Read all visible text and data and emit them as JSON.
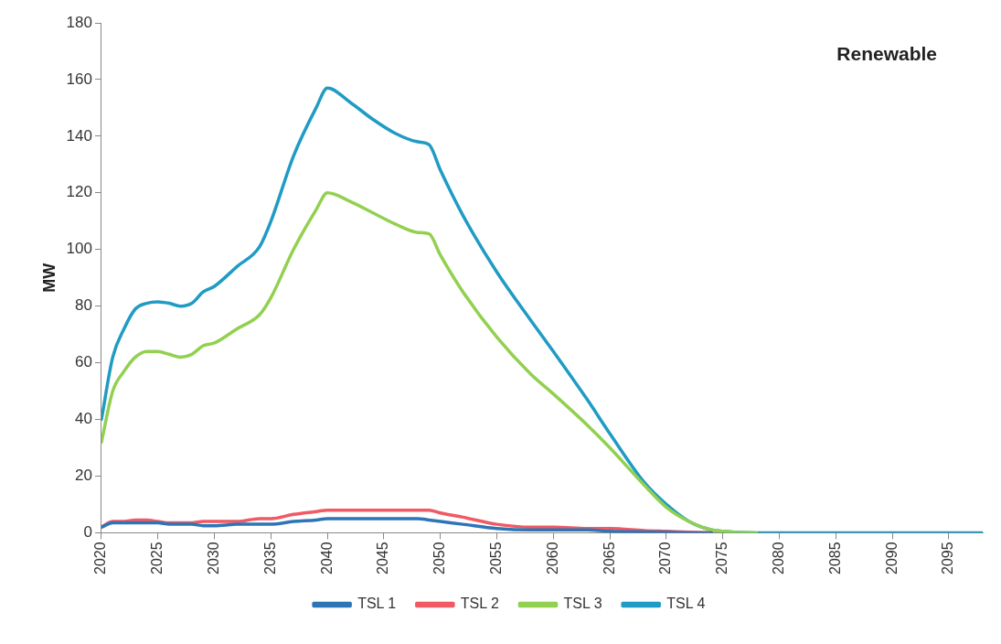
{
  "chart_data": {
    "type": "line",
    "ylabel": "MW",
    "annotations": [
      "Renewable"
    ],
    "x": [
      2020,
      2021,
      2022,
      2023,
      2024,
      2025,
      2026,
      2027,
      2028,
      2029,
      2030,
      2032,
      2034,
      2035,
      2037,
      2039,
      2040,
      2042,
      2044,
      2046,
      2048,
      2049,
      2050,
      2052,
      2055,
      2058,
      2060,
      2063,
      2065,
      2068,
      2070,
      2072,
      2074,
      2075,
      2076,
      2078,
      2080,
      2085,
      2090,
      2095,
      2098
    ],
    "series": [
      {
        "name": "TSL 1",
        "color": "#2e75b6",
        "values": [
          2,
          3.5,
          3.5,
          3.5,
          3.5,
          3.5,
          3,
          3,
          3,
          2.5,
          2.5,
          3,
          3,
          3,
          4,
          4.5,
          5,
          5,
          5,
          5,
          5,
          4.5,
          4,
          3,
          1.5,
          1,
          1,
          1,
          0.5,
          0.3,
          0.2,
          0,
          0,
          null,
          null,
          null,
          null,
          null,
          null,
          null,
          null
        ]
      },
      {
        "name": "TSL 2",
        "color": "#f05a64",
        "values": [
          2,
          4,
          4,
          4.5,
          4.5,
          4,
          3.5,
          3.5,
          3.5,
          4,
          4,
          4,
          5,
          5,
          6.5,
          7.5,
          8,
          8,
          8,
          8,
          8,
          8,
          7,
          5.5,
          3,
          2,
          2,
          1.5,
          1.5,
          0.8,
          0.5,
          0.2,
          0,
          null,
          null,
          null,
          null,
          null,
          null,
          null,
          null
        ]
      },
      {
        "name": "TSL 3",
        "color": "#92d050",
        "values": [
          32,
          50,
          57,
          62,
          64,
          64,
          63,
          62,
          63,
          66,
          67,
          72,
          77,
          83,
          100,
          114,
          120,
          117,
          113,
          109,
          106,
          105.5,
          98,
          85,
          69,
          56,
          49,
          38,
          30,
          17,
          9,
          4,
          1,
          0.5,
          0.2,
          0,
          null,
          null,
          null,
          null,
          null
        ]
      },
      {
        "name": "TSL 4",
        "color": "#1f9bc4",
        "values": [
          40,
          62,
          72,
          79,
          81,
          81.5,
          81,
          80,
          81,
          85,
          87,
          94,
          101,
          110,
          133,
          150,
          157,
          152,
          146,
          141,
          138,
          137,
          128,
          112,
          92,
          75,
          64,
          47,
          35,
          18,
          10,
          4,
          1,
          0.5,
          0.2,
          0,
          0,
          0,
          0,
          0,
          0
        ]
      }
    ],
    "xlim": [
      2020,
      2098
    ],
    "xticks": [
      2020,
      2025,
      2030,
      2035,
      2040,
      2045,
      2050,
      2055,
      2060,
      2065,
      2070,
      2075,
      2080,
      2085,
      2090,
      2095
    ],
    "ylim": [
      0,
      180
    ],
    "yticks": [
      0,
      20,
      40,
      60,
      80,
      100,
      120,
      140,
      160,
      180
    ],
    "grid": false,
    "legend": "bottom",
    "marker": "none",
    "line_style": "solid"
  }
}
